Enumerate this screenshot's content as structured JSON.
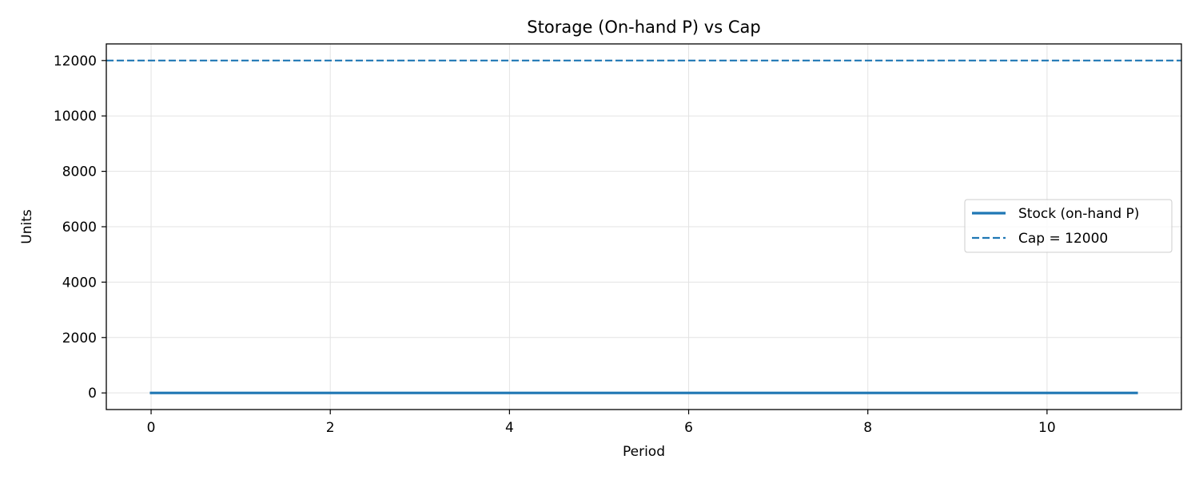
{
  "chart_data": {
    "type": "line",
    "title": "Storage (On-hand P) vs Cap",
    "xlabel": "Period",
    "ylabel": "Units",
    "xlim": [
      -0.5,
      11.5
    ],
    "ylim": [
      -600,
      12600
    ],
    "xticks": [
      0,
      2,
      4,
      6,
      8,
      10
    ],
    "yticks": [
      0,
      2000,
      4000,
      6000,
      8000,
      10000,
      12000
    ],
    "grid": true,
    "legend_position": "center-right",
    "series": [
      {
        "name": "Stock (on-hand P)",
        "style": "solid",
        "color": "#1f77b4",
        "x": [
          0,
          1,
          2,
          3,
          4,
          5,
          6,
          7,
          8,
          9,
          10,
          11
        ],
        "values": [
          0,
          0,
          0,
          0,
          0,
          0,
          0,
          0,
          0,
          0,
          0,
          0
        ]
      },
      {
        "name": "Cap = 12000",
        "style": "dashed",
        "color": "#1f77b4",
        "type": "hline",
        "value": 12000
      }
    ]
  }
}
